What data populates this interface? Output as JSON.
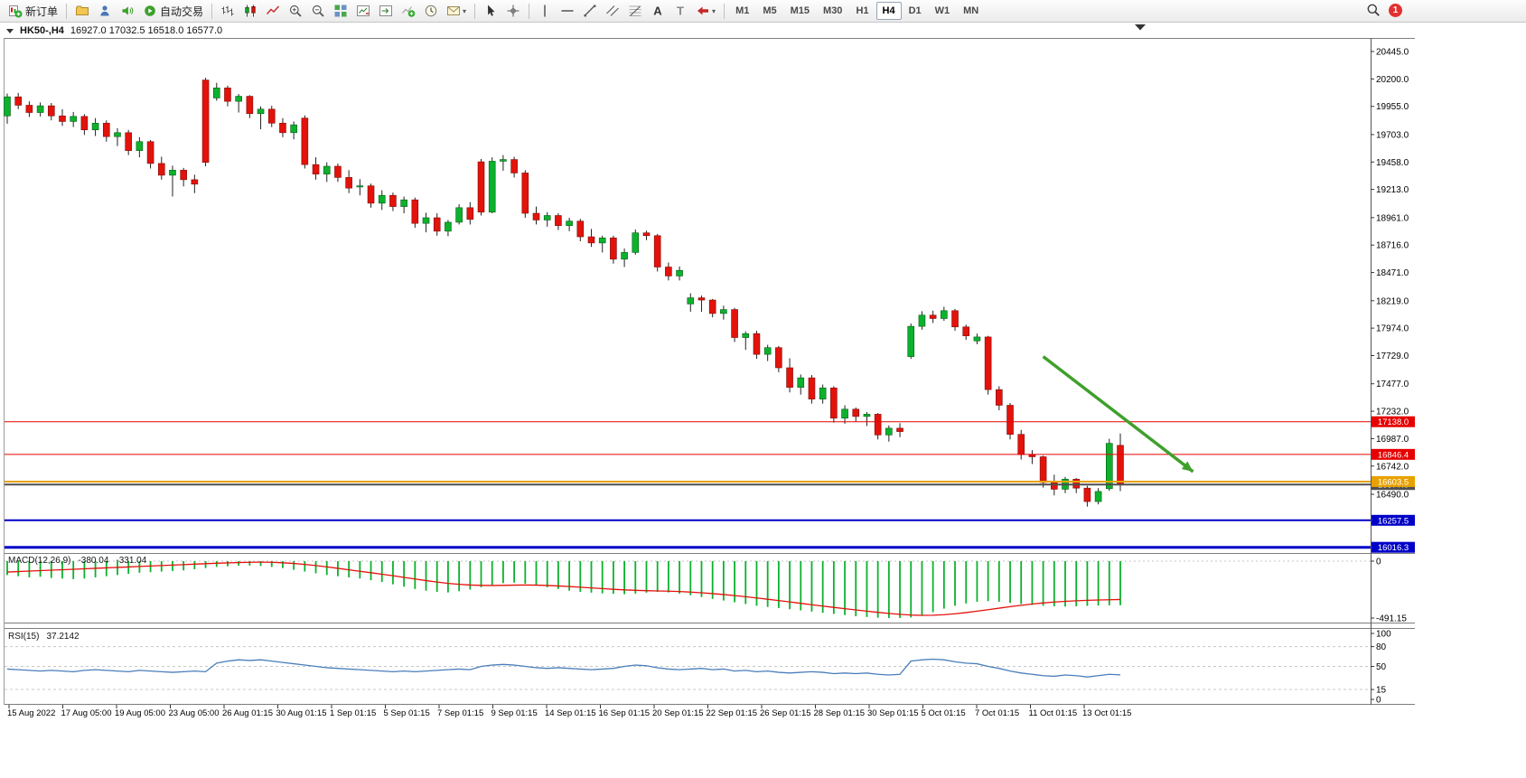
{
  "toolbar": {
    "notification_count": "1",
    "selected_timeframe": "H4",
    "timeframes": [
      "M1",
      "M5",
      "M15",
      "M30",
      "H1",
      "H4",
      "D1",
      "W1",
      "MN"
    ],
    "items": [
      {
        "type": "btn",
        "name": "new-order-button",
        "icon": "new-order",
        "label": "新订单"
      },
      {
        "type": "sep"
      },
      {
        "type": "btn",
        "name": "profiles-button",
        "icon": "folder"
      },
      {
        "type": "btn",
        "name": "market-watch-button",
        "icon": "person"
      },
      {
        "type": "btn",
        "name": "alerts-button",
        "icon": "speaker"
      },
      {
        "type": "btn",
        "name": "auto-trading-button",
        "icon": "autotrade",
        "label": "自动交易"
      },
      {
        "type": "sep"
      },
      {
        "type": "btn",
        "name": "bar-chart-button",
        "icon": "bars"
      },
      {
        "type": "btn",
        "name": "candlestick-chart-button",
        "icon": "candles"
      },
      {
        "type": "btn",
        "name": "line-chart-button",
        "icon": "linechart"
      },
      {
        "type": "btn",
        "name": "zoom-in-button",
        "icon": "zoom-in"
      },
      {
        "type": "btn",
        "name": "zoom-out-button",
        "icon": "zoom-out"
      },
      {
        "type": "btn",
        "name": "tile-windows-button",
        "icon": "grid"
      },
      {
        "type": "btn",
        "name": "chart-shift-button",
        "icon": "chart-shift"
      },
      {
        "type": "btn",
        "name": "auto-scroll-button",
        "icon": "auto-scroll"
      },
      {
        "type": "btn",
        "name": "indicators-button",
        "icon": "indicator-add"
      },
      {
        "type": "btn",
        "name": "periods-button",
        "icon": "clock"
      },
      {
        "type": "btn",
        "name": "templates-button",
        "icon": "template",
        "caret": true
      },
      {
        "type": "sep"
      },
      {
        "type": "btn",
        "name": "cursor-button",
        "icon": "cursor"
      },
      {
        "type": "btn",
        "name": "crosshair-button",
        "icon": "crosshair"
      },
      {
        "type": "sep"
      },
      {
        "type": "btn",
        "name": "vertical-line-button",
        "icon": "vline"
      },
      {
        "type": "btn",
        "name": "horizontal-line-button",
        "icon": "hline"
      },
      {
        "type": "btn",
        "name": "trendline-button",
        "icon": "trendline"
      },
      {
        "type": "btn",
        "name": "channel-button",
        "icon": "channel"
      },
      {
        "type": "btn",
        "name": "fibonacci-button",
        "icon": "fibo"
      },
      {
        "type": "btn",
        "name": "text-button",
        "icon": "textA"
      },
      {
        "type": "btn",
        "name": "label-button",
        "icon": "textT"
      },
      {
        "type": "btn",
        "name": "arrows-button",
        "icon": "shapes",
        "caret": true
      },
      {
        "type": "sep"
      }
    ]
  },
  "chart": {
    "symbol_period": "HK50-,H4",
    "ohlc": "16927.0 17032.5 16518.0 16577.0"
  },
  "indicators": {
    "macd": {
      "name": "MACD(12,26,9)",
      "value_main": "-380.04",
      "value_signal": "-331.04",
      "axis": [
        {
          "label": "0",
          "value": 0
        },
        {
          "label": "-491.15",
          "value": -491.15
        }
      ]
    },
    "rsi": {
      "name": "RSI(15)",
      "value": "37.2142",
      "axis": [
        {
          "label": "100",
          "value": 100
        },
        {
          "label": "80",
          "value": 80
        },
        {
          "label": "50",
          "value": 50
        },
        {
          "label": "15",
          "value": 15
        },
        {
          "label": "0",
          "value": 0
        }
      ],
      "levels": [
        80,
        50,
        15
      ]
    }
  },
  "chart_data": {
    "type": "candlestick",
    "symbol": "HK50-",
    "timeframe": "H4",
    "current_ohlc": {
      "open": 16927.0,
      "high": 17032.5,
      "low": 16518.0,
      "close": 16577.0
    },
    "colors": {
      "up": "#0cb22d",
      "down": "#e3120b",
      "wick": "#222222",
      "macd_histogram": "#0cb22d",
      "macd_signal": "#e3120b",
      "rsi_line": "#4a7ebb"
    },
    "price_axis_ticks": [
      20445,
      20200,
      19955,
      19703,
      19458,
      19213,
      18961,
      18716,
      18471,
      18219,
      17974,
      17729,
      17477,
      17232,
      16987,
      16742,
      16490
    ],
    "levels": [
      {
        "price": 17138.0,
        "label": "17138.0",
        "color": "#e60000",
        "width": 1,
        "name": "resistance-line-17138"
      },
      {
        "price": 16846.4,
        "label": "16846.4",
        "color": "#e60000",
        "width": 1,
        "name": "resistance-line-16846"
      },
      {
        "price": 16577.0,
        "label": "16577.0",
        "color": "#4f4f4f",
        "width": 2,
        "name": "current-price-line"
      },
      {
        "price": 16603.5,
        "label": "16603.5",
        "color": "#e8a200",
        "width": 2,
        "name": "support-line-16603"
      },
      {
        "price": 16257.5,
        "label": "16257.5",
        "color": "#0000c8",
        "width": 2,
        "name": "support-line-16257"
      },
      {
        "price": 16016.3,
        "label": "16016.3",
        "color": "#0000c8",
        "width": 3,
        "name": "support-line-16016"
      }
    ],
    "candles": [
      [
        19870,
        20070,
        19800,
        20040
      ],
      [
        20040,
        20075,
        19930,
        19965
      ],
      [
        19965,
        20000,
        19860,
        19900
      ],
      [
        19900,
        19990,
        19865,
        19960
      ],
      [
        19960,
        19985,
        19830,
        19870
      ],
      [
        19870,
        19930,
        19780,
        19820
      ],
      [
        19820,
        19905,
        19770,
        19865
      ],
      [
        19865,
        19885,
        19700,
        19745
      ],
      [
        19745,
        19850,
        19690,
        19805
      ],
      [
        19805,
        19830,
        19640,
        19685
      ],
      [
        19685,
        19760,
        19600,
        19720
      ],
      [
        19720,
        19745,
        19520,
        19560
      ],
      [
        19560,
        19680,
        19500,
        19640
      ],
      [
        19640,
        19655,
        19400,
        19445
      ],
      [
        19445,
        19505,
        19300,
        19340
      ],
      [
        19340,
        19425,
        19150,
        19385
      ],
      [
        19385,
        19405,
        19240,
        19300
      ],
      [
        19300,
        19345,
        19180,
        19260
      ],
      [
        20190,
        20210,
        19420,
        19455
      ],
      [
        20030,
        20165,
        20005,
        20120
      ],
      [
        20120,
        20140,
        19955,
        20000
      ],
      [
        20000,
        20065,
        19900,
        20045
      ],
      [
        20045,
        20055,
        19850,
        19890
      ],
      [
        19890,
        19955,
        19750,
        19930
      ],
      [
        19930,
        19960,
        19770,
        19805
      ],
      [
        19805,
        19850,
        19680,
        19720
      ],
      [
        19720,
        19820,
        19660,
        19790
      ],
      [
        19850,
        19875,
        19400,
        19435
      ],
      [
        19435,
        19500,
        19300,
        19350
      ],
      [
        19350,
        19455,
        19280,
        19420
      ],
      [
        19420,
        19445,
        19280,
        19320
      ],
      [
        19320,
        19385,
        19180,
        19225
      ],
      [
        19235,
        19305,
        19160,
        19245
      ],
      [
        19245,
        19265,
        19050,
        19090
      ],
      [
        19090,
        19205,
        19030,
        19160
      ],
      [
        19160,
        19185,
        19020,
        19060
      ],
      [
        19060,
        19150,
        19000,
        19120
      ],
      [
        19120,
        19140,
        18870,
        18910
      ],
      [
        18910,
        19005,
        18830,
        18960
      ],
      [
        18960,
        19000,
        18800,
        18840
      ],
      [
        18840,
        18940,
        18795,
        18920
      ],
      [
        18920,
        19080,
        18900,
        19050
      ],
      [
        19050,
        19100,
        18900,
        18945
      ],
      [
        19460,
        19485,
        18980,
        19010
      ],
      [
        19010,
        19500,
        19000,
        19465
      ],
      [
        19465,
        19520,
        19380,
        19480
      ],
      [
        19480,
        19505,
        19320,
        19360
      ],
      [
        19360,
        19385,
        18960,
        19000
      ],
      [
        19000,
        19060,
        18900,
        18940
      ],
      [
        18940,
        19010,
        18880,
        18980
      ],
      [
        18980,
        19000,
        18850,
        18890
      ],
      [
        18890,
        18960,
        18840,
        18930
      ],
      [
        18930,
        18950,
        18750,
        18790
      ],
      [
        18790,
        18860,
        18700,
        18735
      ],
      [
        18735,
        18800,
        18650,
        18780
      ],
      [
        18780,
        18800,
        18550,
        18590
      ],
      [
        18590,
        18685,
        18520,
        18650
      ],
      [
        18650,
        18855,
        18630,
        18825
      ],
      [
        18825,
        18845,
        18760,
        18800
      ],
      [
        18800,
        18815,
        18480,
        18520
      ],
      [
        18520,
        18560,
        18400,
        18440
      ],
      [
        18440,
        18525,
        18400,
        18490
      ],
      [
        18190,
        18285,
        18120,
        18245
      ],
      [
        18245,
        18265,
        18120,
        18225
      ],
      [
        18225,
        18235,
        18070,
        18105
      ],
      [
        18105,
        18175,
        18050,
        18140
      ],
      [
        18140,
        18155,
        17850,
        17890
      ],
      [
        17890,
        17945,
        17780,
        17925
      ],
      [
        17925,
        17950,
        17700,
        17740
      ],
      [
        17740,
        17825,
        17680,
        17800
      ],
      [
        17800,
        17815,
        17580,
        17620
      ],
      [
        17620,
        17705,
        17400,
        17445
      ],
      [
        17445,
        17560,
        17380,
        17530
      ],
      [
        17530,
        17555,
        17300,
        17340
      ],
      [
        17340,
        17470,
        17300,
        17440
      ],
      [
        17440,
        17455,
        17130,
        17170
      ],
      [
        17170,
        17285,
        17120,
        17250
      ],
      [
        17250,
        17265,
        17140,
        17185
      ],
      [
        17185,
        17225,
        17100,
        17205
      ],
      [
        17205,
        17215,
        16980,
        17020
      ],
      [
        17020,
        17105,
        16960,
        17080
      ],
      [
        17080,
        17125,
        17000,
        17050
      ],
      [
        17720,
        18015,
        17700,
        17990
      ],
      [
        17990,
        18125,
        17960,
        18090
      ],
      [
        18090,
        18130,
        18020,
        18060
      ],
      [
        18060,
        18165,
        18040,
        18130
      ],
      [
        18130,
        18145,
        17950,
        17985
      ],
      [
        17985,
        18005,
        17870,
        17905
      ],
      [
        17860,
        17925,
        17830,
        17895
      ],
      [
        17895,
        17905,
        17380,
        17425
      ],
      [
        17425,
        17455,
        17240,
        17285
      ],
      [
        17285,
        17305,
        16980,
        17025
      ],
      [
        17025,
        17065,
        16800,
        16845
      ],
      [
        16845,
        16885,
        16760,
        16825
      ],
      [
        16825,
        16835,
        16550,
        16595
      ],
      [
        16595,
        16665,
        16480,
        16535
      ],
      [
        16535,
        16645,
        16500,
        16625
      ],
      [
        16625,
        16635,
        16500,
        16545
      ],
      [
        16545,
        16565,
        16380,
        16425
      ],
      [
        16425,
        16545,
        16400,
        16515
      ],
      [
        16540,
        16985,
        16520,
        16945
      ],
      [
        16927,
        17032.5,
        16518,
        16577
      ]
    ],
    "macd": {
      "histogram": [
        -120,
        -130,
        -140,
        -135,
        -145,
        -150,
        -155,
        -150,
        -140,
        -130,
        -120,
        -110,
        -100,
        -95,
        -90,
        -85,
        -80,
        -70,
        -60,
        -50,
        -45,
        -40,
        -38,
        -42,
        -50,
        -60,
        -75,
        -90,
        -105,
        -120,
        -130,
        -140,
        -150,
        -165,
        -180,
        -200,
        -220,
        -240,
        -255,
        -265,
        -270,
        -260,
        -245,
        -225,
        -205,
        -190,
        -185,
        -195,
        -210,
        -225,
        -240,
        -255,
        -265,
        -272,
        -278,
        -282,
        -285,
        -280,
        -272,
        -265,
        -270,
        -280,
        -295,
        -310,
        -325,
        -340,
        -355,
        -370,
        -385,
        -395,
        -405,
        -415,
        -425,
        -435,
        -445,
        -455,
        -465,
        -475,
        -482,
        -488,
        -491,
        -490,
        -486,
        -470,
        -440,
        -410,
        -385,
        -365,
        -350,
        -345,
        -350,
        -360,
        -370,
        -378,
        -385,
        -390,
        -392,
        -390,
        -386,
        -383,
        -381,
        -380
      ],
      "signal": [
        -94,
        -90,
        -86,
        -82,
        -78,
        -74,
        -70,
        -66,
        -62,
        -58,
        -54,
        -50,
        -46,
        -42,
        -38,
        -34,
        -30,
        -26,
        -22,
        -18,
        -15,
        -12,
        -10,
        -9,
        -10,
        -14,
        -20,
        -28,
        -38,
        -50,
        -62,
        -75,
        -88,
        -100,
        -113,
        -126,
        -140,
        -154,
        -168,
        -180,
        -192,
        -200,
        -206,
        -209,
        -210,
        -209,
        -207,
        -206,
        -207,
        -210,
        -214,
        -219,
        -225,
        -231,
        -237,
        -243,
        -248,
        -252,
        -255,
        -257,
        -259,
        -262,
        -267,
        -273,
        -280,
        -288,
        -297,
        -307,
        -318,
        -329,
        -340,
        -352,
        -364,
        -376,
        -388,
        -399,
        -410,
        -421,
        -432,
        -442,
        -451,
        -459,
        -465,
        -468,
        -467,
        -462,
        -454,
        -444,
        -432,
        -419,
        -406,
        -393,
        -381,
        -370,
        -361,
        -353,
        -347,
        -342,
        -338,
        -335,
        -333,
        -331
      ]
    },
    "rsi": {
      "values": [
        46,
        45,
        44,
        43,
        44,
        43,
        42,
        44,
        45,
        44,
        43,
        42,
        44,
        43,
        42,
        41,
        42,
        43,
        42,
        55,
        58,
        60,
        59,
        60,
        58,
        56,
        54,
        52,
        50,
        48,
        47,
        46,
        45,
        44,
        43,
        42,
        43,
        42,
        43,
        44,
        45,
        46,
        45,
        50,
        52,
        53,
        52,
        50,
        48,
        47,
        48,
        47,
        46,
        45,
        46,
        47,
        50,
        52,
        51,
        48,
        46,
        45,
        46,
        47,
        45,
        46,
        43,
        44,
        42,
        43,
        41,
        40,
        41,
        42,
        41,
        39,
        40,
        39,
        40,
        38,
        37,
        38,
        58,
        60,
        61,
        60,
        57,
        55,
        54,
        50,
        47,
        43,
        40,
        38,
        36,
        35,
        37,
        36,
        34,
        36,
        38,
        37.2
      ]
    },
    "time_axis": [
      "15 Aug 2022",
      "17 Aug 05:00",
      "19 Aug 05:00",
      "23 Aug 05:00",
      "26 Aug 01:15",
      "30 Aug 01:15",
      "1 Sep 01:15",
      "5 Sep 01:15",
      "7 Sep 01:15",
      "9 Sep 01:15",
      "14 Sep 01:15",
      "16 Sep 01:15",
      "20 Sep 01:15",
      "22 Sep 01:15",
      "26 Sep 01:15",
      "28 Sep 01:15",
      "30 Sep 01:15",
      "5 Oct 01:15",
      "7 Oct 01:15",
      "11 Oct 01:15",
      "13 Oct 01:15"
    ],
    "trend_arrow": {
      "from": {
        "index": 94,
        "price": 17720
      },
      "to": {
        "index": 107.6,
        "price": 16692
      },
      "color": "#3fa02c"
    }
  }
}
